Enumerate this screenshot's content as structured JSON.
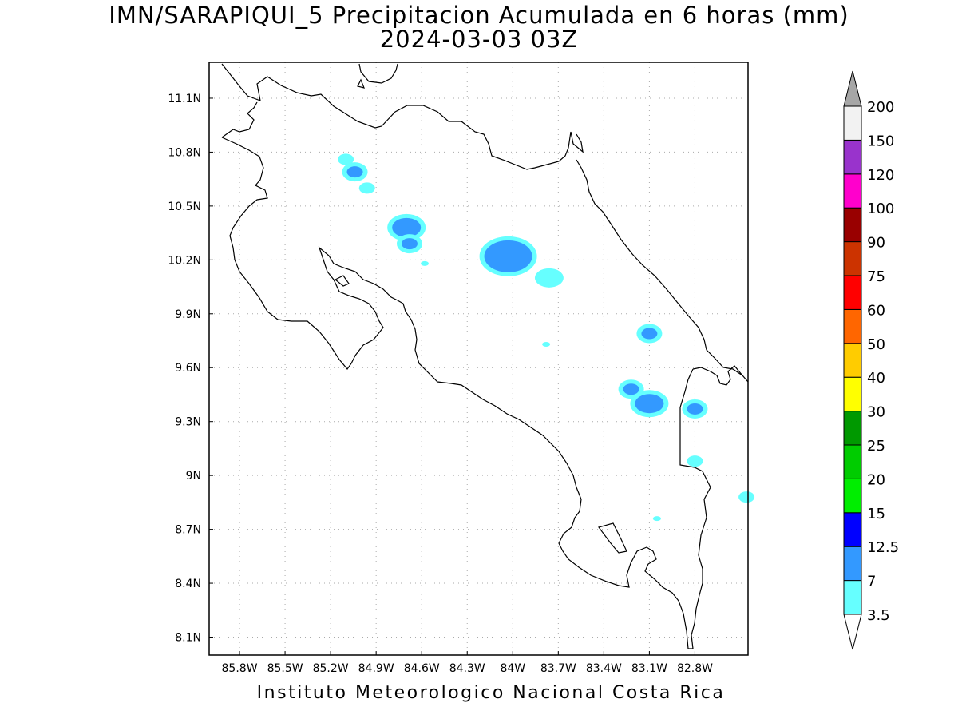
{
  "title_line1": "IMN/SARAPIQUI_5 Precipitacion Acumulada en 6 horas (mm)",
  "title_line2": "2024-03-03 03Z",
  "credit": "Instituto Meteorologico Nacional Costa Rica",
  "map": {
    "lat_labels": [
      "11.1N",
      "10.8N",
      "10.5N",
      "10.2N",
      "9.9N",
      "9.6N",
      "9.3N",
      "9N",
      "8.7N",
      "8.4N",
      "8.1N"
    ],
    "lat_values": [
      11.1,
      10.8,
      10.5,
      10.2,
      9.9,
      9.6,
      9.3,
      9.0,
      8.7,
      8.4,
      8.1
    ],
    "lon_labels": [
      "85.8W",
      "85.5W",
      "85.2W",
      "84.9W",
      "84.6W",
      "84.3W",
      "84W",
      "83.7W",
      "83.4W",
      "83.1W",
      "82.8W"
    ],
    "lon_values": [
      -85.8,
      -85.5,
      -85.2,
      -84.9,
      -84.6,
      -84.3,
      -84.0,
      -83.7,
      -83.4,
      -83.1,
      -82.8
    ],
    "lat_range": [
      8.0,
      11.3
    ],
    "lon_range": [
      -86.0,
      -82.45
    ],
    "grid": true,
    "precip_areas": [
      {
        "level": "3.5",
        "lat": 10.76,
        "lon": -85.1,
        "size": "small"
      },
      {
        "level": "7",
        "lat": 10.69,
        "lon": -85.04,
        "size": "small"
      },
      {
        "level": "3.5",
        "lat": 10.6,
        "lon": -84.96,
        "size": "small"
      },
      {
        "level": "7",
        "lat": 10.38,
        "lon": -84.7,
        "size": "medium"
      },
      {
        "level": "7",
        "lat": 10.29,
        "lon": -84.68,
        "size": "small"
      },
      {
        "level": "3.5",
        "lat": 10.18,
        "lon": -84.58,
        "size": "tiny"
      },
      {
        "level": "7",
        "lat": 10.22,
        "lon": -84.03,
        "size": "large"
      },
      {
        "level": "3.5",
        "lat": 10.1,
        "lon": -83.76,
        "size": "medium"
      },
      {
        "level": "3.5",
        "lat": 9.73,
        "lon": -83.78,
        "size": "tiny"
      },
      {
        "level": "7",
        "lat": 9.79,
        "lon": -83.1,
        "size": "small"
      },
      {
        "level": "7",
        "lat": 9.48,
        "lon": -83.22,
        "size": "small"
      },
      {
        "level": "7",
        "lat": 9.4,
        "lon": -83.1,
        "size": "medium"
      },
      {
        "level": "7",
        "lat": 9.37,
        "lon": -82.8,
        "size": "small"
      },
      {
        "level": "3.5",
        "lat": 9.08,
        "lon": -82.8,
        "size": "small"
      },
      {
        "level": "3.5",
        "lat": 8.76,
        "lon": -83.05,
        "size": "tiny"
      },
      {
        "level": "3.5",
        "lat": 8.88,
        "lon": -82.46,
        "size": "small"
      }
    ]
  },
  "colorbar": {
    "labels": [
      "3.5",
      "7",
      "12.5",
      "15",
      "20",
      "25",
      "30",
      "40",
      "50",
      "60",
      "75",
      "90",
      "100",
      "120",
      "150",
      "200"
    ],
    "colors": [
      "#66ffff",
      "#3399ff",
      "#0000ff",
      "#00ee00",
      "#00cc00",
      "#009900",
      "#ffff00",
      "#ffcc00",
      "#ff6600",
      "#ff0000",
      "#cc3300",
      "#990000",
      "#ff00cc",
      "#9933cc",
      "#f2f2f2"
    ],
    "low_arrow_color": "#ffffff",
    "high_arrow_color": "#a6a6a6"
  }
}
